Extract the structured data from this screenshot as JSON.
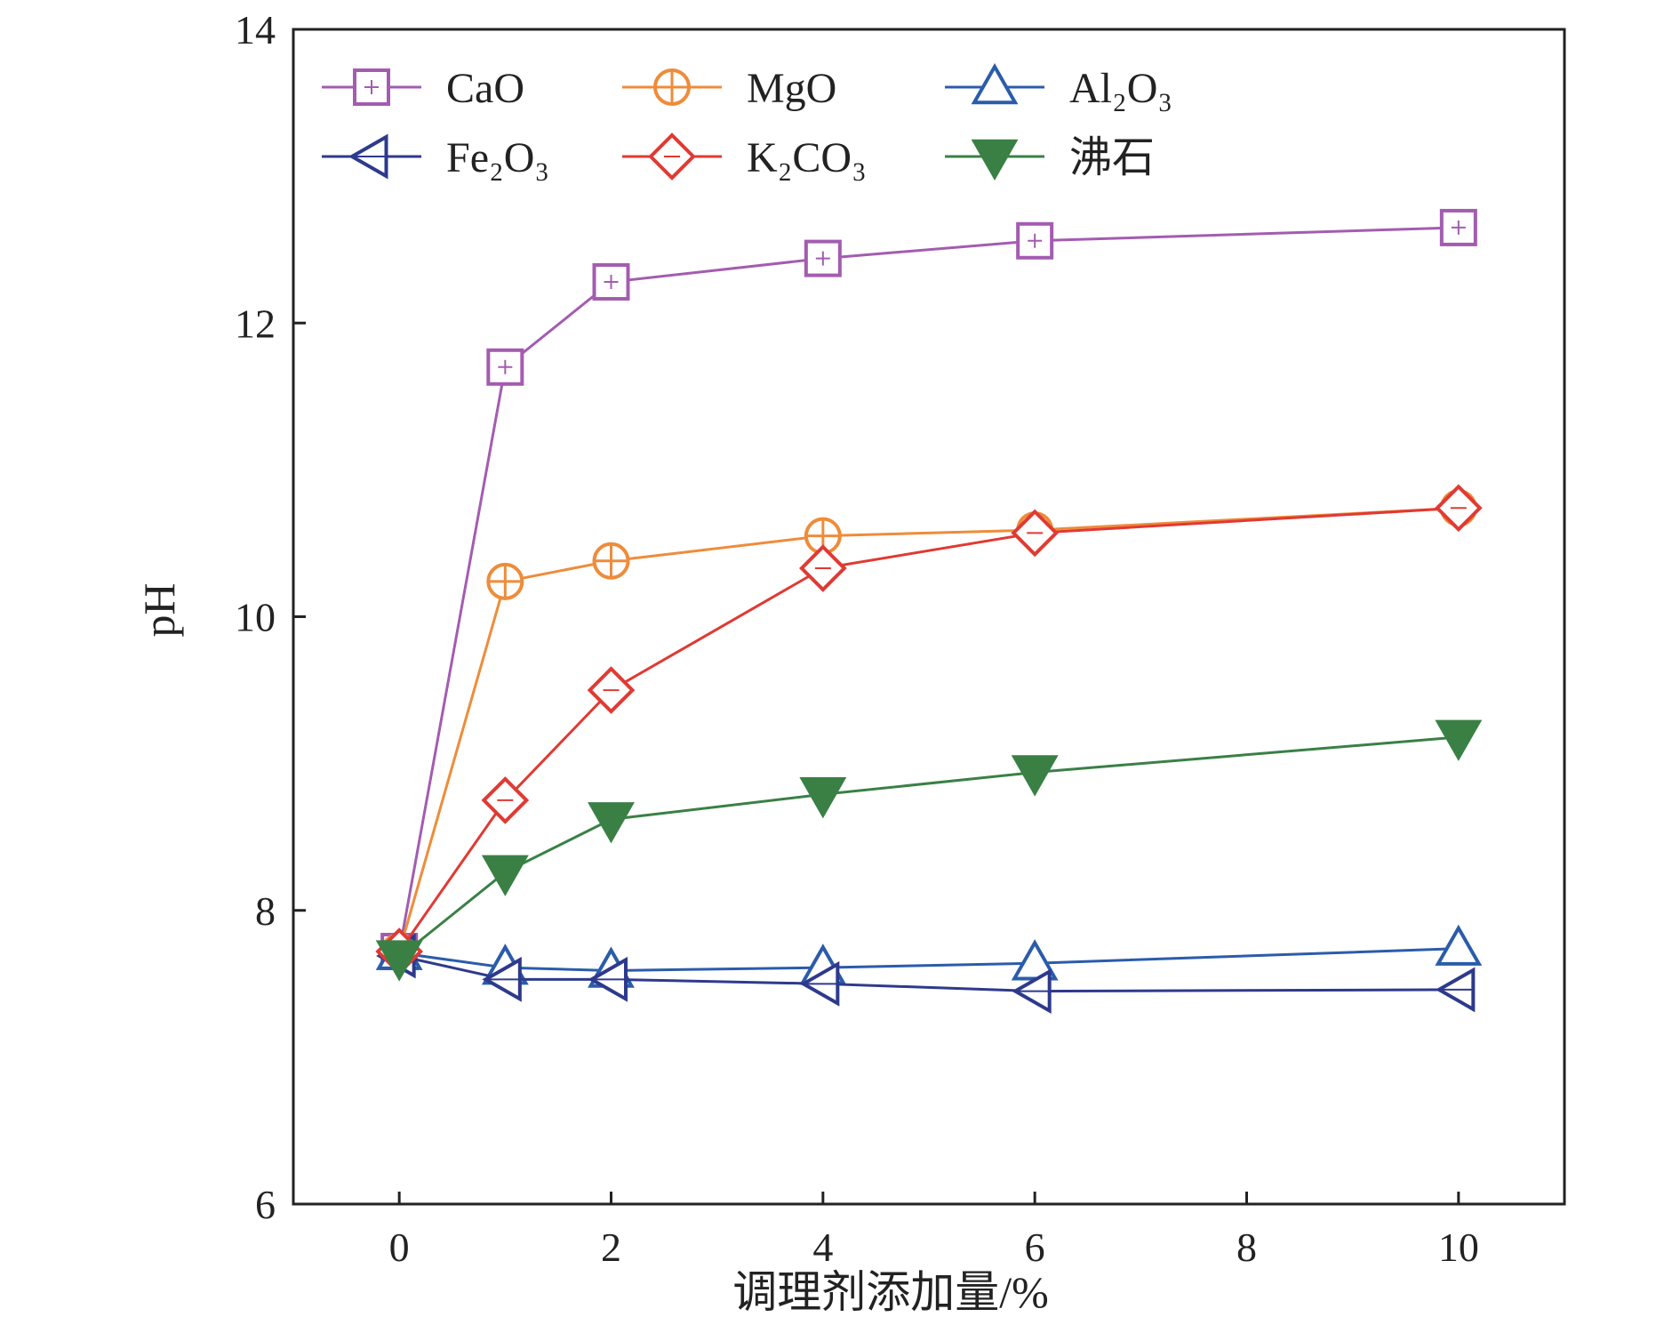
{
  "chart_data": {
    "type": "line",
    "xlabel": "调理剂添加量/%",
    "ylabel": "pH",
    "xlim": [
      -1,
      11
    ],
    "ylim": [
      6,
      14
    ],
    "x_ticks": [
      "0",
      "2",
      "4",
      "6",
      "8",
      "10"
    ],
    "y_ticks": [
      "6",
      "8",
      "10",
      "12",
      "14"
    ],
    "legend_placement": "top-left",
    "grid": false,
    "x": [
      0,
      1,
      2,
      4,
      6,
      10
    ],
    "series": [
      {
        "name": "CaO",
        "marker": "square",
        "color": "#a35cb0",
        "filled": false,
        "values": [
          7.72,
          11.7,
          12.28,
          12.44,
          12.56,
          12.65
        ],
        "errors": [
          0.04,
          0.12,
          0.05,
          0.04,
          0.04,
          0.04
        ]
      },
      {
        "name": "MgO",
        "marker": "circle-plus",
        "color": "#ee8c3a",
        "filled": false,
        "values": [
          7.72,
          10.24,
          10.38,
          10.55,
          10.59,
          10.74
        ],
        "errors": [
          0.03,
          0.04,
          0.03,
          0.03,
          0.03,
          0.03
        ]
      },
      {
        "name": "Al₂O₃",
        "marker": "triangle-up",
        "color": "#2b5cab",
        "filled": false,
        "values": [
          7.71,
          7.61,
          7.59,
          7.61,
          7.64,
          7.74
        ],
        "errors": [
          0.03,
          0.03,
          0.03,
          0.03,
          0.03,
          0.03
        ]
      },
      {
        "name": "Fe₂O₃",
        "marker": "triangle-left",
        "color": "#2d3a8c",
        "filled": false,
        "values": [
          7.69,
          7.53,
          7.53,
          7.5,
          7.45,
          7.46
        ],
        "errors": [
          0.03,
          0.05,
          0.04,
          0.04,
          0.05,
          0.05
        ]
      },
      {
        "name": "K₂CO₃",
        "marker": "diamond",
        "color": "#e03a33",
        "filled": false,
        "values": [
          7.72,
          8.75,
          9.5,
          10.33,
          10.57,
          10.74
        ],
        "errors": [
          0.04,
          0.06,
          0.06,
          0.06,
          0.05,
          0.04
        ]
      },
      {
        "name": "沸石",
        "marker": "triangle-down",
        "color": "#3a8045",
        "filled": true,
        "values": [
          7.68,
          8.26,
          8.62,
          8.79,
          8.94,
          9.18
        ],
        "errors": [
          0.03,
          0.05,
          0.04,
          0.04,
          0.04,
          0.04
        ]
      }
    ]
  }
}
